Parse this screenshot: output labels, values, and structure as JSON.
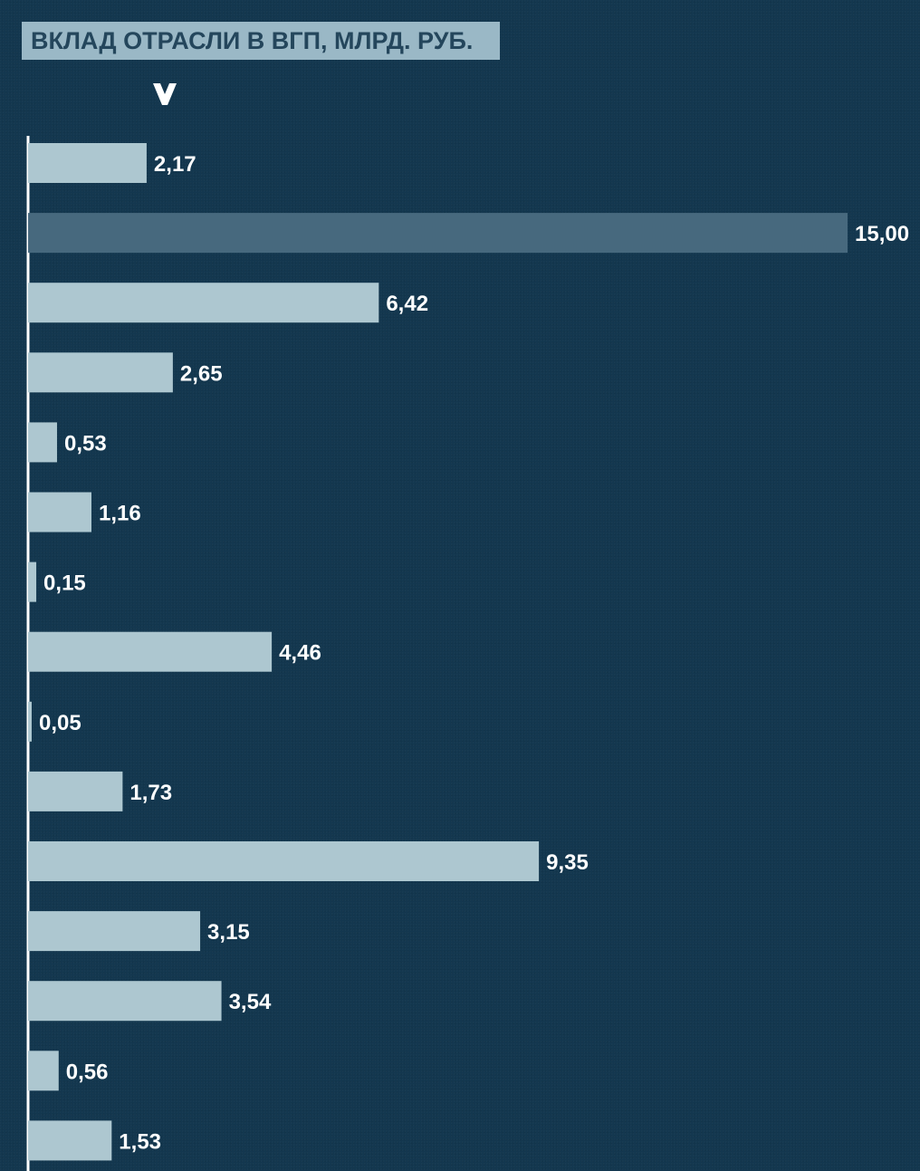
{
  "chart_data": {
    "type": "bar",
    "orientation": "horizontal",
    "title": "ВКЛАД ОТРАСЛИ В ВГП, МЛРД. РУБ.",
    "values": [
      2.17,
      15.0,
      6.42,
      2.65,
      0.53,
      1.16,
      0.15,
      4.46,
      0.05,
      1.73,
      9.35,
      3.15,
      3.54,
      0.56,
      1.53
    ],
    "value_labels": [
      "2,17",
      "15,00",
      "6,42",
      "2,65",
      "0,53",
      "1,16",
      "0,15",
      "4,46",
      "0,05",
      "1,73",
      "9,35",
      "3,15",
      "3,54",
      "0,56",
      "1,53"
    ],
    "highlight_index": 1,
    "xlim": [
      0,
      15
    ],
    "grid": false,
    "colors": {
      "background": "#13374f",
      "bar": "#adc7d0",
      "bar_highlight": "#47697e",
      "title_bg": "#9ab8c6",
      "title_text": "#24465c",
      "label": "#ffffff",
      "axis": "#ffffff"
    }
  }
}
